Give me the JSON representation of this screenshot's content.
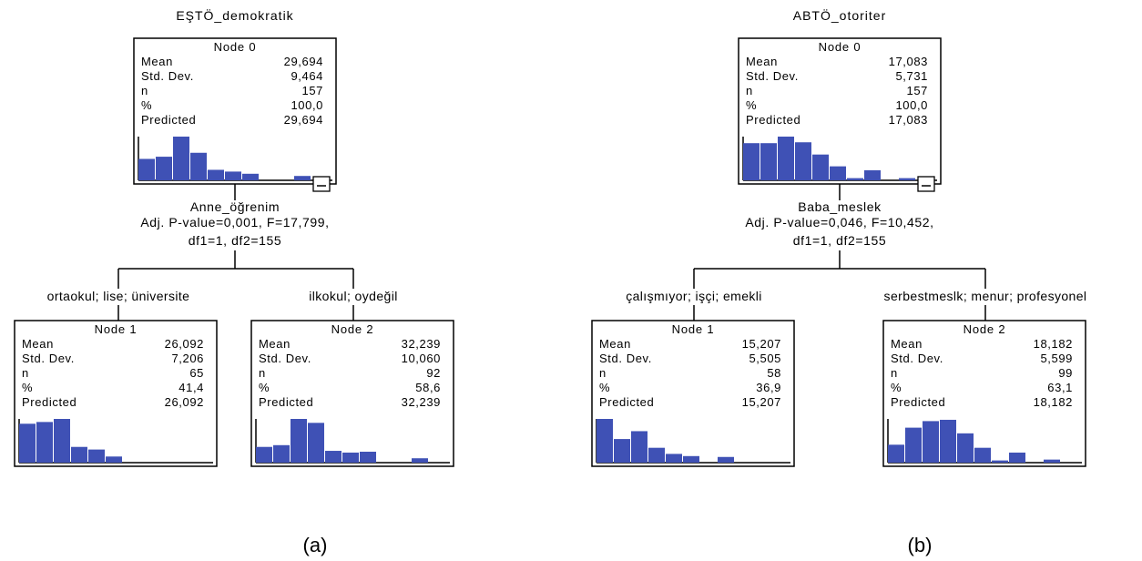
{
  "captions": [
    "(a)",
    "(b)"
  ],
  "trees": [
    {
      "title": "EŞTÖ_demokratik",
      "root": {
        "name": "Node 0",
        "stats": [
          [
            "Mean",
            "29,694"
          ],
          [
            "Std. Dev.",
            "9,464"
          ],
          [
            "n",
            "157"
          ],
          [
            "%",
            "100,0"
          ],
          [
            "Predicted",
            "29,694"
          ]
        ],
        "hist": [
          0.49,
          0.54,
          1.0,
          0.63,
          0.24,
          0.2,
          0.15,
          0,
          0,
          0.1
        ]
      },
      "split": {
        "variable": "Anne_öğrenim",
        "stat_line": "Adj. P-value=0,001, F=17,799,",
        "df_line": "df1=1, df2=155"
      },
      "branches": [
        "ortaokul; lise; üniversite",
        "ilkokul; oydeğil"
      ],
      "children": [
        {
          "name": "Node 1",
          "stats": [
            [
              "Mean",
              "26,092"
            ],
            [
              "Std. Dev.",
              "7,206"
            ],
            [
              "n",
              "65"
            ],
            [
              "%",
              "41,4"
            ],
            [
              "Predicted",
              "26,092"
            ]
          ],
          "hist": [
            0.89,
            0.93,
            1.0,
            0.36,
            0.3,
            0.14,
            0,
            0,
            0,
            0
          ]
        },
        {
          "name": "Node 2",
          "stats": [
            [
              "Mean",
              "32,239"
            ],
            [
              "Std. Dev.",
              "10,060"
            ],
            [
              "n",
              "92"
            ],
            [
              "%",
              "58,6"
            ],
            [
              "Predicted",
              "32,239"
            ]
          ],
          "hist": [
            0.36,
            0.4,
            1.0,
            0.91,
            0.27,
            0.23,
            0.25,
            0,
            0,
            0.1
          ]
        }
      ]
    },
    {
      "title": "ABTÖ_otoriter",
      "root": {
        "name": "Node 0",
        "stats": [
          [
            "Mean",
            "17,083"
          ],
          [
            "Std. Dev.",
            "5,731"
          ],
          [
            "n",
            "157"
          ],
          [
            "%",
            "100,0"
          ],
          [
            "Predicted",
            "17,083"
          ]
        ],
        "hist": [
          0.85,
          0.85,
          1.0,
          0.87,
          0.59,
          0.32,
          0.05,
          0.23,
          0,
          0.05
        ]
      },
      "split": {
        "variable": "Baba_meslek",
        "stat_line": "Adj. P-value=0,046, F=10,452,",
        "df_line": "df1=1, df2=155"
      },
      "branches": [
        "çalışmıyor; işçi; emekli",
        "serbestmeslk; menur; profesyonel"
      ],
      "children": [
        {
          "name": "Node 1",
          "stats": [
            [
              "Mean",
              "15,207"
            ],
            [
              "Std. Dev.",
              "5,505"
            ],
            [
              "n",
              "58"
            ],
            [
              "%",
              "36,9"
            ],
            [
              "Predicted",
              "15,207"
            ]
          ],
          "hist": [
            1.0,
            0.54,
            0.72,
            0.34,
            0.2,
            0.15,
            0,
            0.13,
            0,
            0
          ]
        },
        {
          "name": "Node 2",
          "stats": [
            [
              "Mean",
              "18,182"
            ],
            [
              "Std. Dev.",
              "5,599"
            ],
            [
              "n",
              "99"
            ],
            [
              "%",
              "63,1"
            ],
            [
              "Predicted",
              "18,182"
            ]
          ],
          "hist": [
            0.41,
            0.8,
            0.95,
            0.98,
            0.67,
            0.34,
            0.05,
            0.23,
            0,
            0.07
          ]
        }
      ]
    }
  ],
  "colors": {
    "bar": "#3f51b5",
    "line": "#000000",
    "background": "#ffffff"
  },
  "icons": {
    "collapse": "minus-box-icon"
  }
}
